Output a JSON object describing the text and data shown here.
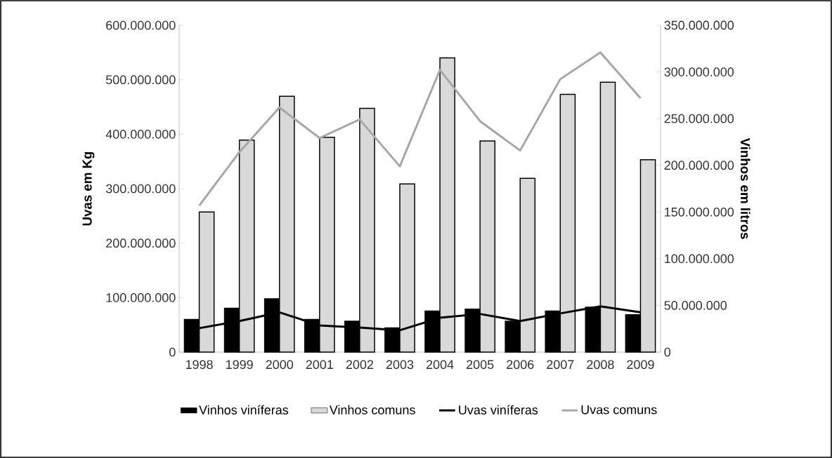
{
  "chart_data": {
    "type": "bar",
    "categories": [
      "1998",
      "1999",
      "2000",
      "2001",
      "2002",
      "2003",
      "2004",
      "2005",
      "2006",
      "2007",
      "2008",
      "2009"
    ],
    "series": [
      {
        "name": "Vinhos viníferas",
        "axis": "y2",
        "color": "#000000",
        "values": [
          35000000,
          47000000,
          57000000,
          35000000,
          33000000,
          26000000,
          44000000,
          46000000,
          33000000,
          44000000,
          48000000,
          40000000
        ]
      },
      {
        "name": "Vinhos comuns",
        "axis": "y2",
        "color": "#d9d9d9",
        "values": [
          150000000,
          227000000,
          274000000,
          230000000,
          261000000,
          180000000,
          315000000,
          226000000,
          186000000,
          276000000,
          289000000,
          206000000
        ]
      },
      {
        "name": "Uvas viníferas",
        "type": "line",
        "color": "#000000",
        "values": [
          44000000,
          57000000,
          73000000,
          49000000,
          45000000,
          40000000,
          63000000,
          70000000,
          57000000,
          71000000,
          84000000,
          73000000
        ]
      },
      {
        "name": "Uvas comuns",
        "type": "line",
        "color": "#a6a6a6",
        "values": [
          269000000,
          367000000,
          449000000,
          393000000,
          427000000,
          341000000,
          518000000,
          424000000,
          370000000,
          501000000,
          550000000,
          466000000
        ]
      }
    ],
    "ylabel": "Uvas em Kg",
    "y2label": "Vinhos em litros",
    "ylim": [
      0,
      600000000
    ],
    "yticks": [
      0,
      {
        "value": 100000000,
        "label": "100.000.000"
      },
      {
        "value": 200000000,
        "label": "200.000.000"
      },
      {
        "value": 300000000,
        "label": "300.000.000"
      },
      {
        "value": 400000000,
        "label": "400.000.000"
      },
      {
        "value": 500000000,
        "label": "500.000.000"
      },
      {
        "value": 600000000,
        "label": "600.000.000"
      }
    ],
    "y2lim": [
      0,
      350000000
    ],
    "y2ticks": [
      0,
      {
        "value": 50000000,
        "label": "50.000.000"
      },
      {
        "value": 100000000,
        "label": "100.000.000"
      },
      {
        "value": 150000000,
        "label": "150.000.000"
      },
      {
        "value": 200000000,
        "label": "200.000.000"
      },
      {
        "value": 250000000,
        "label": "250.000.000"
      },
      {
        "value": 300000000,
        "label": "300.000.000"
      },
      {
        "value": 350000000,
        "label": "350.000.000"
      }
    ],
    "legend": "bottom"
  }
}
